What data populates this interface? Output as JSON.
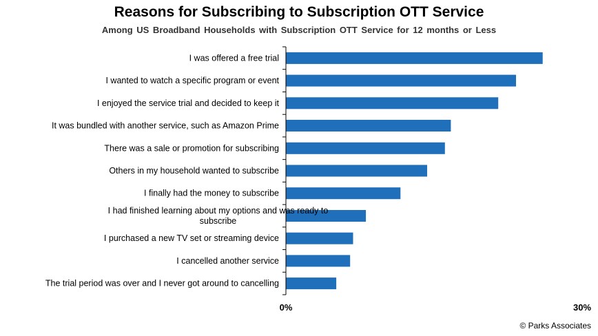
{
  "title": "Reasons for Subscribing to Subscription OTT Service",
  "subtitle": "Among  US Broadband  Households  with  Subscription  OTT Service for 12 months  or Less",
  "source": "© Parks Associates",
  "colors": {
    "bar": "#1F6FBA",
    "axis": "#000000"
  },
  "chart_data": {
    "type": "bar",
    "orientation": "horizontal",
    "title": "Reasons for Subscribing to Subscription OTT Service",
    "subtitle": "Among  US Broadband  Households  with  Subscription  OTT Service for 12 months  or Less",
    "categories": [
      [
        "I was offered a free trial"
      ],
      [
        "I wanted to watch a specific program or event"
      ],
      [
        "I enjoyed the service trial and decided to keep it"
      ],
      [
        "It was bundled with another service, such as Amazon Prime"
      ],
      [
        "There was a sale or promotion for subscribing"
      ],
      [
        "Others in my household wanted to subscribe"
      ],
      [
        "I finally had the money to subscribe"
      ],
      [
        "I had finished learning about my options and was ready to",
        "subscribe"
      ],
      [
        "I purchased a new TV set or streaming device"
      ],
      [
        "I cancelled another service"
      ],
      [
        "The trial period was over and I never got around to cancelling"
      ]
    ],
    "values": [
      26.0,
      23.3,
      21.5,
      16.7,
      16.1,
      14.3,
      11.6,
      8.1,
      6.8,
      6.5,
      5.1
    ],
    "unit": "%",
    "xlim": [
      0,
      30
    ],
    "tick_labels": [
      "0%",
      "30%"
    ],
    "grid": false,
    "legend": "none"
  }
}
